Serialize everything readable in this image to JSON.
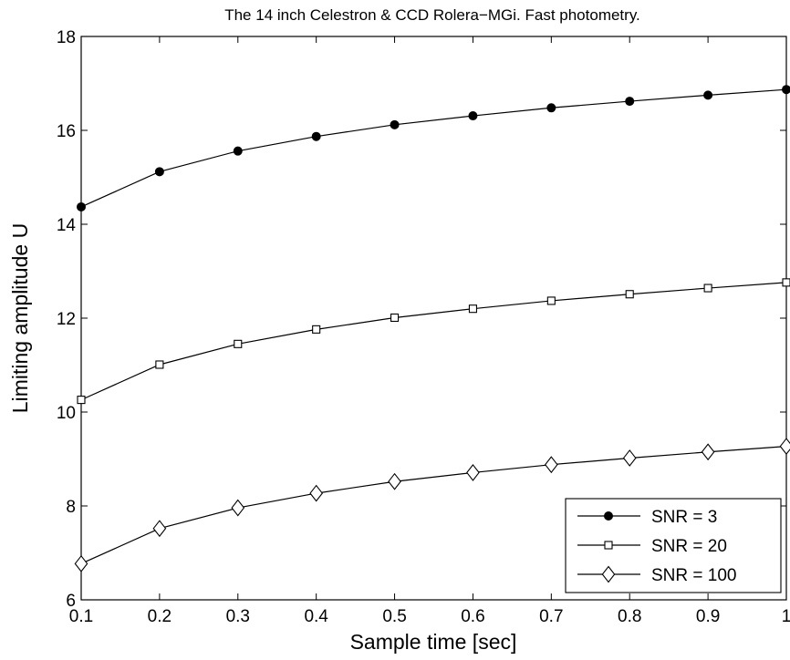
{
  "chart_data": {
    "type": "line",
    "title": "The 14 inch Celestron & CCD Rolera−MGi. Fast photometry.",
    "xlabel": "Sample time [sec]",
    "ylabel": "Limiting amplitude U",
    "xlim": [
      0.1,
      1.0
    ],
    "ylim": [
      6,
      18
    ],
    "xticks": [
      0.1,
      0.2,
      0.3,
      0.4,
      0.5,
      0.6,
      0.7,
      0.8,
      0.9,
      1.0
    ],
    "xtick_labels": [
      "0.1",
      "0.2",
      "0.3",
      "0.4",
      "0.5",
      "0.6",
      "0.7",
      "0.8",
      "0.9",
      "1"
    ],
    "yticks": [
      6,
      8,
      10,
      12,
      14,
      16,
      18
    ],
    "ytick_labels": [
      "6",
      "8",
      "10",
      "12",
      "14",
      "16",
      "18"
    ],
    "grid": false,
    "legend_position": "bottom-right",
    "x": [
      0.1,
      0.2,
      0.3,
      0.4,
      0.5,
      0.6,
      0.7,
      0.8,
      0.9,
      1.0
    ],
    "series": [
      {
        "name": "SNR = 3",
        "marker": "filled-circle",
        "color": "#000000",
        "values": [
          14.37,
          15.12,
          15.56,
          15.87,
          16.12,
          16.31,
          16.48,
          16.62,
          16.75,
          16.87
        ]
      },
      {
        "name": "SNR = 20",
        "marker": "square",
        "color": "#000000",
        "values": [
          10.26,
          11.01,
          11.45,
          11.76,
          12.01,
          12.2,
          12.37,
          12.51,
          12.64,
          12.76
        ]
      },
      {
        "name": "SNR = 100",
        "marker": "diamond",
        "color": "#000000",
        "values": [
          6.77,
          7.52,
          7.96,
          8.27,
          8.52,
          8.71,
          8.88,
          9.02,
          9.15,
          9.27
        ]
      }
    ]
  }
}
